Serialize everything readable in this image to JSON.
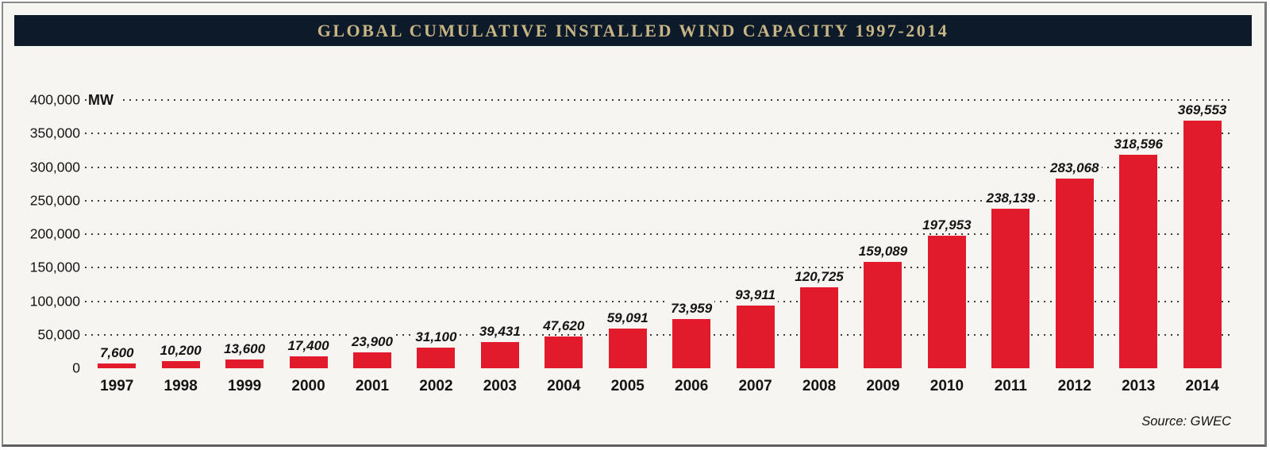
{
  "colors": {
    "bar": "#e11b2c",
    "title_bg": "#0d1a29",
    "title_text": "#c8b585",
    "background": "#f6f5f1",
    "grid_dots": "#3a3a3a"
  },
  "chart_data": {
    "type": "bar",
    "title": "GLOBAL CUMULATIVE INSTALLED WIND CAPACITY 1997-2014",
    "xlabel": "",
    "ylabel": "MW",
    "categories": [
      "1997",
      "1998",
      "1999",
      "2000",
      "2001",
      "2002",
      "2003",
      "2004",
      "2005",
      "2006",
      "2007",
      "2008",
      "2009",
      "2010",
      "2011",
      "2012",
      "2013",
      "2014"
    ],
    "values": [
      7600,
      10200,
      13600,
      17400,
      23900,
      31100,
      39431,
      47620,
      59091,
      73959,
      93911,
      120725,
      159089,
      197953,
      238139,
      283068,
      318596,
      369553
    ],
    "value_labels": [
      "7,600",
      "10,200",
      "13,600",
      "17,400",
      "23,900",
      "31,100",
      "39,431",
      "47,620",
      "59,091",
      "73,959",
      "93,911",
      "120,725",
      "159,089",
      "197,953",
      "238,139",
      "283,068",
      "318,596",
      "369,553"
    ],
    "ylim": [
      0,
      400000
    ],
    "ytick_step": 50000,
    "ytick_labels_top_to_bottom": [
      "400,000",
      "350,000",
      "300,000",
      "250,000",
      "200,000",
      "150,000",
      "100,000",
      "50,000",
      "0"
    ],
    "grid": "horizontal-dotted",
    "legend": "none",
    "source": "Source: GWEC"
  }
}
